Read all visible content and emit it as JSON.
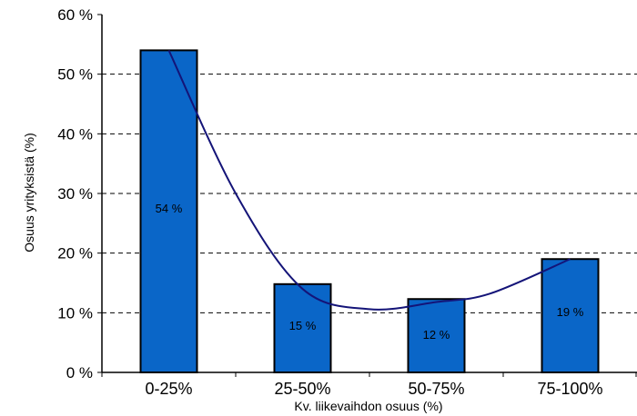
{
  "chart_data": {
    "type": "bar",
    "title": "",
    "xlabel": "Kv. liikevaihdon osuus (%)",
    "ylabel": "Osuus yrityksistä (%)",
    "categories": [
      "0-25%",
      "25-50%",
      "50-75%",
      "75-100%"
    ],
    "values": [
      54,
      14.8,
      12.3,
      19
    ],
    "data_labels": [
      "54 %",
      "15 %",
      "12 %",
      "19 %"
    ],
    "yticks": [
      "0 %",
      "10 %",
      "20 %",
      "30 %",
      "40 %",
      "50 %",
      "60 %"
    ],
    "ylim": [
      0,
      60
    ],
    "grid": "horizontal dashed",
    "legend": "none",
    "trendline": {
      "type": "smoothed line",
      "points": [
        {
          "x": 0,
          "y": 54
        },
        {
          "x": 0.5,
          "y": 30
        },
        {
          "x": 1,
          "y": 14
        },
        {
          "x": 1.5,
          "y": 10.6
        },
        {
          "x": 2,
          "y": 11.8
        },
        {
          "x": 2.4,
          "y": 13.2
        },
        {
          "x": 3,
          "y": 19
        }
      ]
    },
    "colors": {
      "bar_fill": "#0a66c8",
      "bar_stroke": "#000000",
      "trendline": "#141478",
      "grid": "#000000"
    }
  }
}
